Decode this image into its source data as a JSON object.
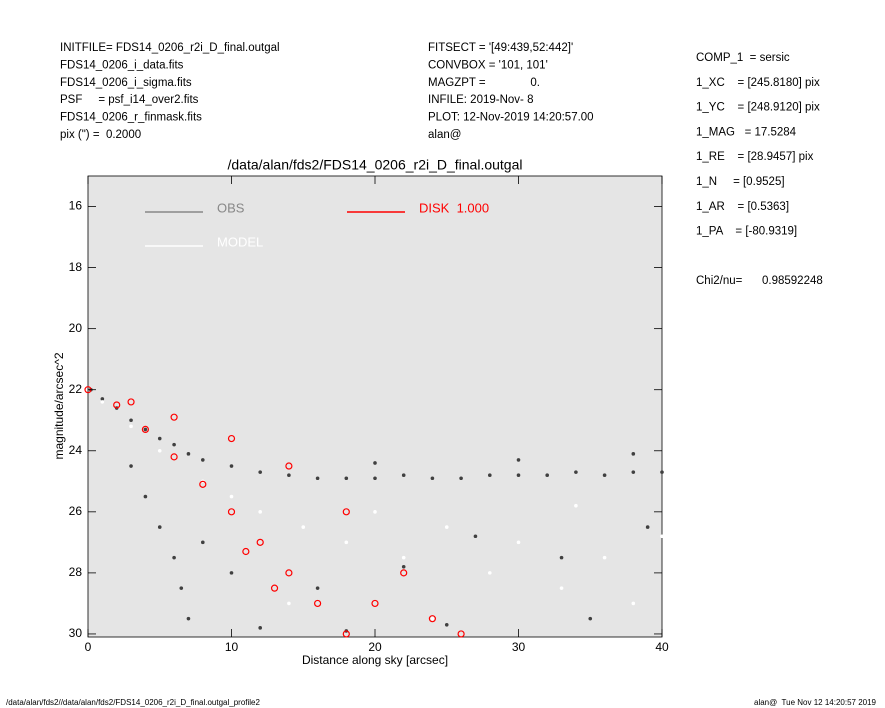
{
  "header": {
    "left": [
      "INITFILE= FDS14_0206_r2i_D_final.outgal",
      "FDS14_0206_i_data.fits",
      "FDS14_0206_i_sigma.fits",
      "PSF     = psf_i14_over2.fits",
      "FDS14_0206_r_finmask.fits",
      "pix (\") =  0.2000"
    ],
    "middle": [
      "FITSECT = '[49:439,52:442]'",
      "CONVBOX = '101, 101'",
      "MAGZPT =              0.",
      "INFILE: 2019-Nov- 8",
      "PLOT: 12-Nov-2019 14:20:57.00",
      "alan@"
    ],
    "right": [
      "COMP_1  = sersic",
      "1_XC    = [245.8180] pix",
      "1_YC    = [248.9120] pix",
      "1_MAG   = 17.5284",
      "1_RE    = [28.9457] pix",
      "1_N     = [0.9525]",
      "1_AR    = [0.5363]",
      "1_PA    = [-80.9319]"
    ],
    "chi2_label": "Chi2/nu=",
    "chi2_value": "0.98592248"
  },
  "footer": {
    "left": "/data/alan/fds2//data/alan/fds2/FDS14_0206_r2i_D_final.outgal_profile2",
    "right": "alan@  Tue Nov 12 14:20:57 2019"
  },
  "chart_data": {
    "type": "scatter",
    "title": "/data/alan/fds2/FDS14_0206_r2i_D_final.outgal",
    "xlabel": "Distance along sky [arcsec]",
    "ylabel": "magnitude/arcsec^2",
    "xlim": [
      0,
      40
    ],
    "xticks": [
      0,
      10,
      20,
      30,
      40
    ],
    "ylim": [
      30.1,
      15
    ],
    "yticks": [
      16,
      18,
      20,
      22,
      24,
      26,
      28,
      30
    ],
    "background": "#e5e5e5",
    "series": [
      {
        "name": "OBS",
        "color": "#404040",
        "legend_color": "#888888",
        "x": [
          0.2,
          1,
          2,
          3,
          4,
          5,
          6,
          7,
          8,
          10,
          12,
          14,
          16,
          18,
          20,
          22,
          24,
          26,
          28,
          30,
          32,
          34,
          36,
          38,
          40,
          20,
          30,
          38,
          3,
          4,
          5,
          6,
          6.5,
          7,
          8,
          10,
          12,
          18,
          25,
          35,
          39,
          33,
          27,
          22,
          16
        ],
        "values": [
          22.0,
          22.3,
          22.6,
          23.0,
          23.3,
          23.6,
          23.8,
          24.1,
          24.3,
          24.5,
          24.7,
          24.8,
          24.9,
          24.9,
          24.9,
          24.8,
          24.9,
          24.9,
          24.8,
          24.8,
          24.8,
          24.7,
          24.8,
          24.7,
          24.7,
          24.4,
          24.3,
          24.1,
          24.5,
          25.5,
          26.5,
          27.5,
          28.5,
          29.5,
          27,
          28,
          29.8,
          29.9,
          29.7,
          29.5,
          26.5,
          27.5,
          26.8,
          27.8,
          28.5
        ]
      },
      {
        "name": "MODEL",
        "color": "#ffffff",
        "legend_color": "#ffffff",
        "x": [
          1,
          3,
          5,
          8,
          10,
          12,
          15,
          18,
          20,
          22,
          25,
          28,
          30,
          33,
          36,
          38,
          40,
          14,
          24,
          34
        ],
        "values": [
          22.4,
          23.2,
          24,
          25,
          25.5,
          26,
          26.5,
          27,
          26,
          27.5,
          26.5,
          28,
          27,
          28.5,
          27.5,
          29,
          26.8,
          29,
          29.5,
          25.8
        ]
      },
      {
        "name": "DISK  1.000",
        "color": "#ff0000",
        "legend_color": "#ff0000",
        "x": [
          0,
          2,
          4,
          6,
          8,
          10,
          12,
          14,
          16,
          18,
          26,
          22,
          18,
          14,
          10,
          6,
          3,
          20,
          24,
          11,
          13
        ],
        "values": [
          22,
          22.5,
          23.3,
          24.2,
          25.1,
          26,
          27,
          28,
          29,
          30,
          30,
          28,
          26,
          24.5,
          23.6,
          22.9,
          22.4,
          29,
          29.5,
          27.3,
          28.5
        ]
      }
    ]
  }
}
